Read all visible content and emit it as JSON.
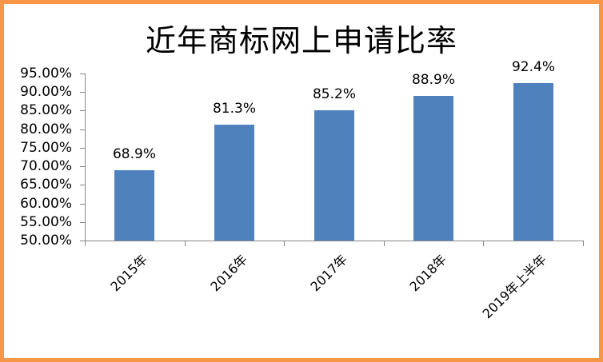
{
  "title": "近年商标网上申请比率",
  "colors": {
    "bar": "#4F81BD",
    "border": "#F79646",
    "axis": "#868686"
  },
  "chart_data": {
    "type": "bar",
    "title": "近年商标网上申请比率",
    "xlabel": "",
    "ylabel": "",
    "categories": [
      "2015年",
      "2016年",
      "2017年",
      "2018年",
      "2019年上半年"
    ],
    "values": [
      68.9,
      81.3,
      85.2,
      88.9,
      92.4
    ],
    "data_labels": [
      "68.9%",
      "81.3%",
      "85.2%",
      "88.9%",
      "92.4%"
    ],
    "ylim": [
      50,
      95
    ],
    "yticks": [
      "95.00%",
      "90.00%",
      "85.00%",
      "80.00%",
      "75.00%",
      "70.00%",
      "65.00%",
      "60.00%",
      "55.00%",
      "50.00%"
    ],
    "grid": false,
    "legend": null,
    "x_label_rotation": -45
  }
}
